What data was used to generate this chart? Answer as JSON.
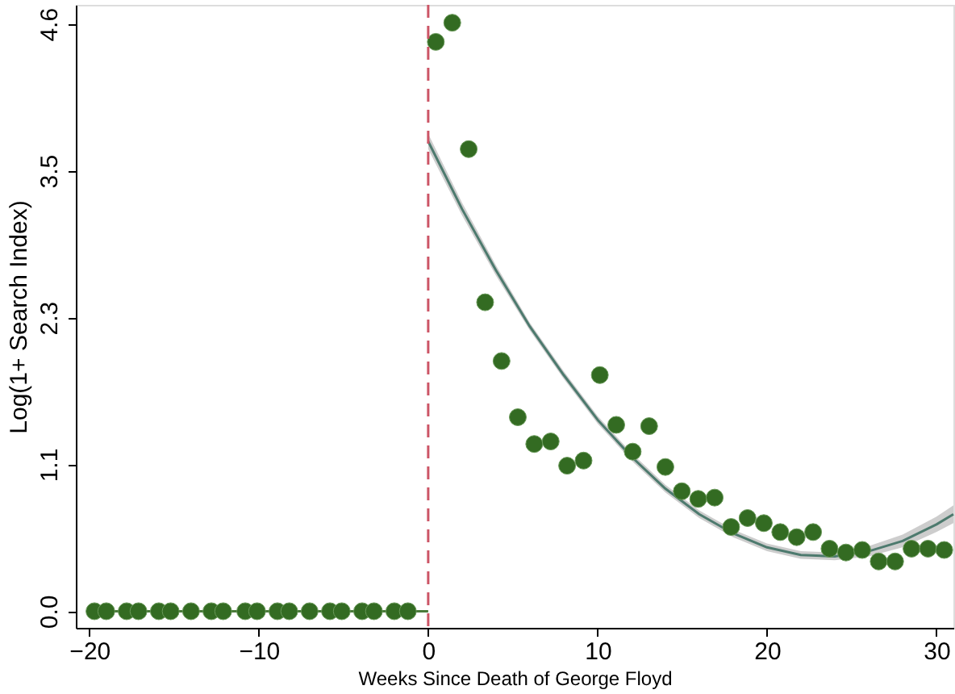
{
  "chart_data": {
    "type": "scatter",
    "xlabel": "Weeks Since Death of George Floyd",
    "ylabel": "Log(1+ Search Index)",
    "xlim": [
      -20.8,
      31
    ],
    "xticks": [
      -20,
      -10,
      0,
      10,
      20,
      30
    ],
    "ylim": [
      -0.13,
      4.75
    ],
    "yticks": [
      {
        "value": 0,
        "label": "0.0"
      },
      {
        "value": 1.15,
        "label": "1.1"
      },
      {
        "value": 2.3,
        "label": "2.3"
      },
      {
        "value": 3.45,
        "label": "3.5"
      },
      {
        "value": 4.6,
        "label": "4.6"
      }
    ],
    "grid": false,
    "marker": "circle",
    "ref_lines": [
      {
        "axis": "x",
        "value": 0,
        "color": "#cc5566",
        "line_style": "dashed"
      }
    ],
    "series": [
      {
        "type": "line",
        "marker": "none",
        "color": "#4a7a3a",
        "x": [
          -19.7,
          0
        ],
        "values": [
          0,
          0
        ]
      },
      {
        "type": "line",
        "marker": "none",
        "color": "#4d7a6e",
        "x": [
          0,
          2,
          4,
          6,
          8,
          10,
          12,
          14,
          16,
          18,
          20,
          22,
          24,
          26,
          28,
          30,
          31
        ],
        "values": [
          3.68,
          3.15,
          2.67,
          2.23,
          1.85,
          1.5,
          1.21,
          0.96,
          0.76,
          0.61,
          0.5,
          0.44,
          0.43,
          0.47,
          0.55,
          0.68,
          0.76
        ],
        "lower": [
          3.62,
          3.1,
          2.63,
          2.2,
          1.82,
          1.47,
          1.18,
          0.93,
          0.73,
          0.58,
          0.47,
          0.41,
          0.4,
          0.43,
          0.5,
          0.62,
          0.69
        ],
        "upper": [
          3.74,
          3.2,
          2.71,
          2.26,
          1.88,
          1.53,
          1.24,
          0.99,
          0.79,
          0.64,
          0.53,
          0.47,
          0.46,
          0.51,
          0.6,
          0.74,
          0.83
        ]
      },
      {
        "color": "#336b22",
        "x": [
          -19.7,
          -19,
          -17.8,
          -17.1,
          -15.9,
          -15.2,
          -14,
          -12.8,
          -12.1,
          -10.8,
          -10.1,
          -8.9,
          -8.2,
          -7,
          -5.8,
          -5.1,
          -3.9,
          -3.2,
          -2,
          -1.2,
          0.45,
          1.42,
          2.39,
          3.36,
          4.33,
          5.29,
          6.26,
          7.23,
          8.2,
          9.17,
          10.13,
          11.1,
          12.07,
          13.04,
          14.0,
          14.97,
          15.94,
          16.91,
          17.88,
          18.85,
          19.81,
          20.78,
          21.75,
          22.72,
          23.69,
          24.66,
          25.62,
          26.59,
          27.56,
          28.53,
          29.5,
          30.46
        ],
        "values": [
          0,
          0,
          0,
          0,
          0,
          0,
          0,
          0,
          0,
          0,
          0,
          0,
          0,
          0,
          0,
          0,
          0,
          0,
          0,
          0,
          4.46,
          4.61,
          3.62,
          2.42,
          1.96,
          1.52,
          1.31,
          1.33,
          1.14,
          1.18,
          1.85,
          1.46,
          1.25,
          1.45,
          1.13,
          0.94,
          0.88,
          0.89,
          0.66,
          0.73,
          0.69,
          0.62,
          0.58,
          0.62,
          0.49,
          0.46,
          0.48,
          0.39,
          0.39,
          0.49,
          0.49,
          0.48
        ]
      }
    ]
  }
}
